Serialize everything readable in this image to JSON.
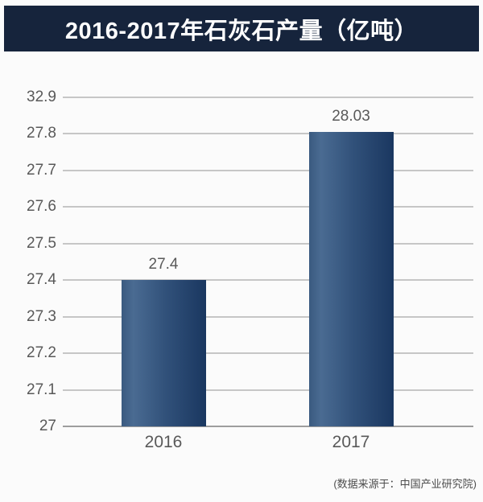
{
  "header": {
    "title": "2016-2017年石灰石产量（亿吨）"
  },
  "footer": {
    "source_note": "(数据来源于：中国产业研究院)"
  },
  "colors": {
    "header_bg": "#16243c",
    "bar_gradient_left": "#4a6b92",
    "bar_gradient_mid": "#31517a",
    "bar_gradient_right": "#1a3760",
    "grid_line": "#c6c6c6",
    "axis_line": "#9e9e9e",
    "label_text": "#595959"
  },
  "chart_data": {
    "type": "bar",
    "title": "2016-2017年石灰石产量（亿吨）",
    "xlabel": "",
    "ylabel": "",
    "categories": [
      "2016",
      "2017"
    ],
    "values": [
      27.4,
      28.03
    ],
    "value_labels": [
      "27.4",
      "28.03"
    ],
    "y_ticks": [
      {
        "label": "32.9",
        "value": 32.9
      },
      {
        "label": "27.8",
        "value": 27.8
      },
      {
        "label": "27.7",
        "value": 27.7
      },
      {
        "label": "27.6",
        "value": 27.6
      },
      {
        "label": "27.5",
        "value": 27.5
      },
      {
        "label": "27.4",
        "value": 27.4
      },
      {
        "label": "27.3",
        "value": 27.3
      },
      {
        "label": "27.2",
        "value": 27.2
      },
      {
        "label": "27.1",
        "value": 27.1
      },
      {
        "label": "27",
        "value": 27
      }
    ],
    "ylim": [
      27,
      32.9
    ],
    "grid": "horizontal-only",
    "legend": "none"
  }
}
